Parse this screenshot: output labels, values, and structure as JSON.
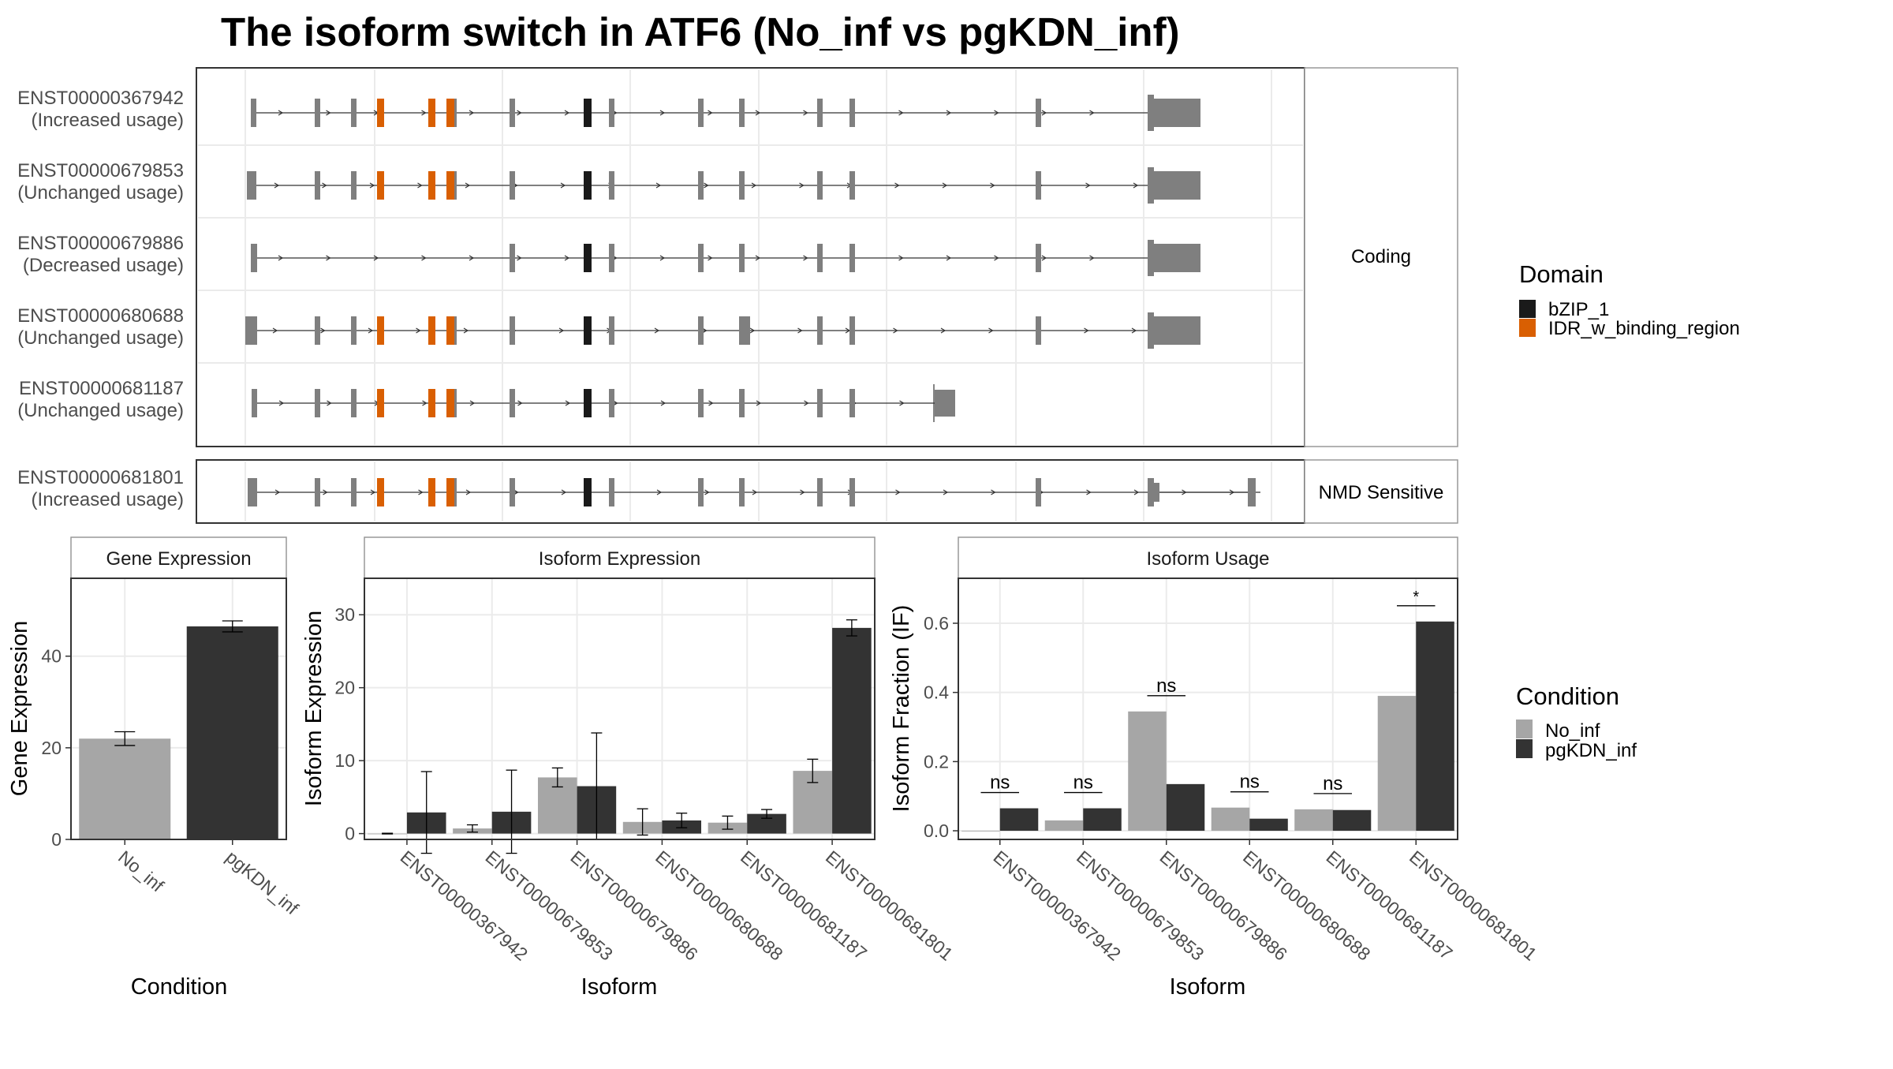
{
  "figure": {
    "title": "The isoform switch in ATF6 (No_inf vs pgKDN_inf)"
  },
  "colors": {
    "exon": "#7f7f7f",
    "bZIP_1": "#1a1a1a",
    "IDR_w_binding_region": "#d95f02",
    "No_inf": "#a6a6a6",
    "pgKDN_inf": "#333333",
    "panel_border": "#333333",
    "strip_border": "#999999",
    "grid": "#ebebeb"
  },
  "structure": {
    "coding_label": "Coding",
    "nmd_label": "NMD Sensitive",
    "domain_legend_title": "Domain",
    "domain_legend": [
      "bZIP_1",
      "IDR_w_binding_region"
    ],
    "coding_isoforms": [
      {
        "id": "ENST00000367942",
        "usage": "(Increased usage)"
      },
      {
        "id": "ENST00000679853",
        "usage": "(Unchanged usage)"
      },
      {
        "id": "ENST00000679886",
        "usage": "(Decreased usage)"
      },
      {
        "id": "ENST00000680688",
        "usage": "(Unchanged usage)"
      },
      {
        "id": "ENST00000681187",
        "usage": "(Unchanged usage)"
      }
    ],
    "nmd_isoforms": [
      {
        "id": "ENST00000681801",
        "usage": "(Increased usage)"
      }
    ]
  },
  "condition_legend": {
    "title": "Condition",
    "items": [
      "No_inf",
      "pgKDN_inf"
    ]
  },
  "chart_data": [
    {
      "type": "bar",
      "title": "Gene Expression",
      "xlabel": "Condition",
      "ylabel": "Gene Expression",
      "categories": [
        "No_inf",
        "pgKDN_inf"
      ],
      "values": [
        22,
        46.5
      ],
      "errors": [
        1.5,
        1.2
      ],
      "ylim": [
        0,
        57
      ],
      "yticks": [
        0,
        20,
        40
      ]
    },
    {
      "type": "bar",
      "title": "Isoform Expression",
      "xlabel": "Isoform",
      "ylabel": "Isoform Expression",
      "categories": [
        "ENST00000367942",
        "ENST00000679853",
        "ENST00000679886",
        "ENST00000680688",
        "ENST00000681187",
        "ENST00000681801"
      ],
      "series": [
        {
          "name": "No_inf",
          "values": [
            0,
            0.7,
            7.7,
            1.6,
            1.5,
            8.6
          ],
          "errors": [
            0.05,
            0.5,
            1.3,
            1.8,
            0.9,
            1.6
          ]
        },
        {
          "name": "pgKDN_inf",
          "values": [
            2.9,
            3.0,
            6.5,
            1.8,
            2.7,
            28.2
          ],
          "errors": [
            5.6,
            5.7,
            7.3,
            1.0,
            0.6,
            1.1
          ]
        }
      ],
      "ylim": [
        -0.8,
        35
      ],
      "yticks": [
        0,
        10,
        20,
        30
      ]
    },
    {
      "type": "bar",
      "title": "Isoform Usage",
      "xlabel": "Isoform",
      "ylabel": "Isoform Fraction (IF)",
      "categories": [
        "ENST00000367942",
        "ENST00000679853",
        "ENST00000679886",
        "ENST00000680688",
        "ENST00000681187",
        "ENST00000681801"
      ],
      "series": [
        {
          "name": "No_inf",
          "values": [
            0.0,
            0.03,
            0.345,
            0.067,
            0.062,
            0.39
          ]
        },
        {
          "name": "pgKDN_inf",
          "values": [
            0.065,
            0.065,
            0.135,
            0.035,
            0.06,
            0.605
          ]
        }
      ],
      "significance": [
        "ns",
        "ns",
        "ns",
        "ns",
        "ns",
        "*"
      ],
      "ylim": [
        -0.025,
        0.73
      ],
      "yticks": [
        0.0,
        0.2,
        0.4,
        0.6
      ]
    }
  ]
}
